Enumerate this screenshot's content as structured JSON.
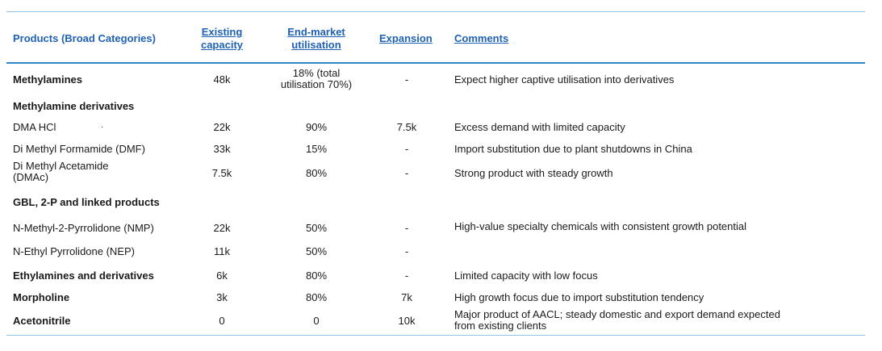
{
  "header": {
    "products": "Products (Broad Categories)",
    "capacity_l1": "Existing",
    "capacity_l2": "capacity",
    "utilisation_l1": "End-market",
    "utilisation_l2": "utilisation",
    "expansion": "Expansion",
    "comments": "Comments"
  },
  "rows": [
    {
      "product": "Methylamines",
      "capacity": "48k",
      "util_l1": "18% (total",
      "util_l2": "utilisation 70%)",
      "expansion": "-",
      "comment": "Expect higher captive utilisation into derivatives"
    },
    {
      "product": "Methylamine derivatives"
    },
    {
      "product": "DMA HCl",
      "capacity": "22k",
      "util": "90%",
      "expansion": "7.5k",
      "comment": "Excess demand with limited capacity",
      "dot": "·"
    },
    {
      "product": "Di Methyl Formamide (DMF)",
      "capacity": "33k",
      "util": "15%",
      "expansion": "-",
      "comment": "Import substitution due to plant shutdowns in China"
    },
    {
      "product_l1": "Di Methyl Acetamide",
      "product_l2": "(DMAc)",
      "capacity": "7.5k",
      "util": "80%",
      "expansion": "-",
      "comment": "Strong product with steady growth"
    },
    {
      "product": "GBL, 2-P and linked products"
    },
    {
      "product": "N-Methyl-2-Pyrrolidone (NMP)",
      "capacity": "22k",
      "util": "50%",
      "expansion": "-",
      "comment": "High-value specialty chemicals with consistent growth potential"
    },
    {
      "product": "N-Ethyl Pyrrolidone (NEP)",
      "capacity": "11k",
      "util": "50%",
      "expansion": "-"
    },
    {
      "product": "Ethylamines and derivatives",
      "capacity": "6k",
      "util": "80%",
      "expansion": "-",
      "comment": "Limited capacity with low focus"
    },
    {
      "product": "Morpholine",
      "capacity": "3k",
      "util": "80%",
      "expansion": "7k",
      "comment": "High growth focus due to import substitution tendency"
    },
    {
      "product": "Acetonitrile",
      "capacity": "0",
      "util": "0",
      "expansion": "10k",
      "comment_l1": "Major product of AACL; steady domestic and export demand expected",
      "comment_l2": "from existing clients"
    }
  ]
}
